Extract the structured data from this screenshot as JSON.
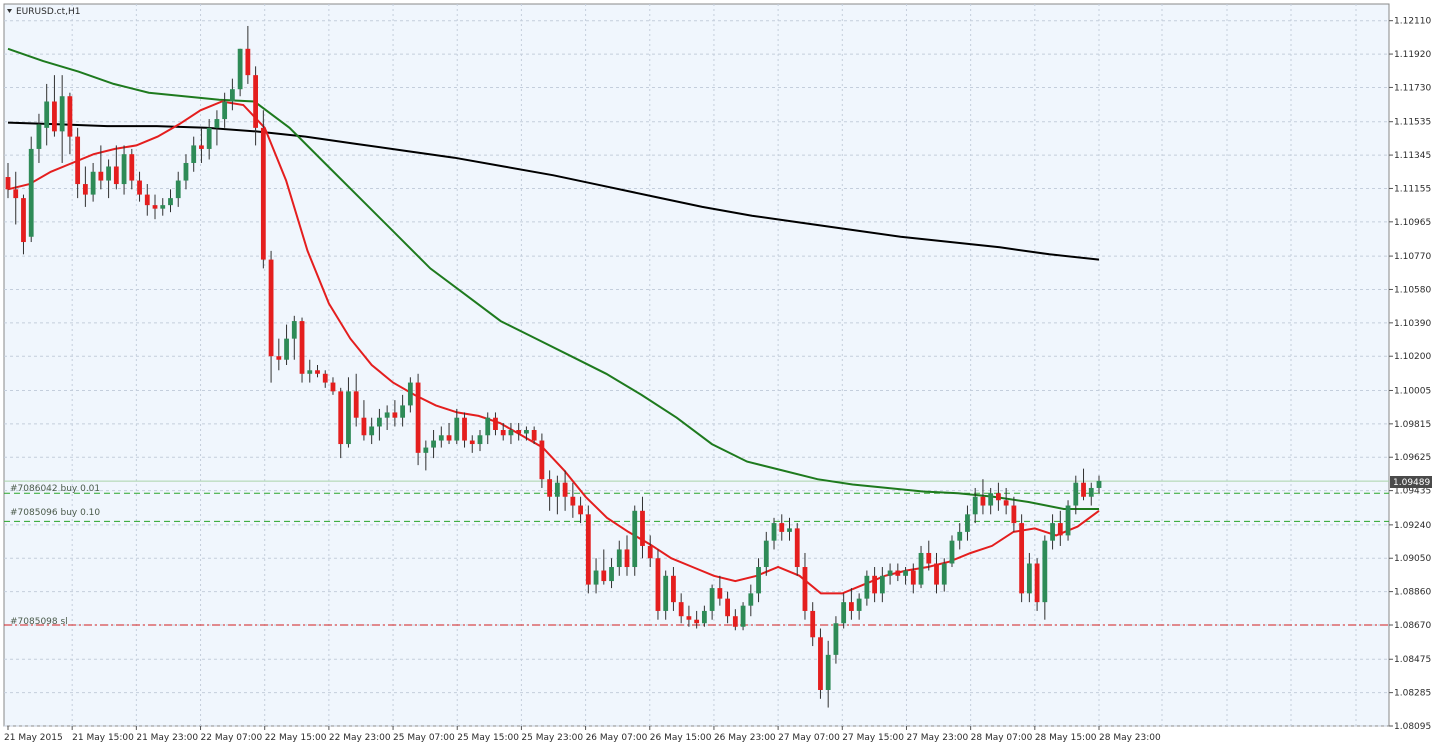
{
  "window": {
    "symbol_title": "EURUSD.ct,H1"
  },
  "colors": {
    "background": "#f0f6fd",
    "grid": "#c4cedc",
    "bull_candle": "#2e8b57",
    "bear_candle": "#e41e1e",
    "wick": "#303030",
    "ma_fast": "#e41e1e",
    "ma_mid": "#1e7a1e",
    "ma_slow": "#000000",
    "order_line_buy": "#2aa52a",
    "order_line_sl": "#d21e1e",
    "bid_line": "#a9d3a9",
    "current_price_tag": "#4a4a4a"
  },
  "price_axis": {
    "labels": [
      "1.12110",
      "1.11920",
      "1.11730",
      "1.11535",
      "1.11345",
      "1.11155",
      "1.10965",
      "1.10770",
      "1.10580",
      "1.10390",
      "1.10200",
      "1.10005",
      "1.09815",
      "1.09625",
      "1.09435",
      "1.09240",
      "1.09050",
      "1.08860",
      "1.08670",
      "1.08475",
      "1.08285",
      "1.08095"
    ],
    "current_price": "1.09489"
  },
  "time_axis": {
    "labels": [
      "21 May 2015",
      "21 May 15:00",
      "21 May 23:00",
      "22 May 07:00",
      "22 May 15:00",
      "22 May 23:00",
      "25 May 07:00",
      "25 May 15:00",
      "25 May 23:00",
      "26 May 07:00",
      "26 May 15:00",
      "26 May 23:00",
      "27 May 07:00",
      "27 May 15:00",
      "27 May 23:00",
      "28 May 07:00",
      "28 May 15:00",
      "28 May 23:00"
    ]
  },
  "orders": [
    {
      "label": "#7086042 buy 0.01",
      "price": 1.0942,
      "type": "buy"
    },
    {
      "label": "#7085096 buy 0.10",
      "price": 1.0926,
      "type": "buy"
    },
    {
      "label": "#7085098 sl",
      "price": 1.0867,
      "type": "sl"
    }
  ],
  "chart_data": {
    "type": "candlestick",
    "title": "EURUSD.ct,H1",
    "timeframe": "H1",
    "ylim": [
      1.08095,
      1.12205
    ],
    "candles": [
      [
        1.1122,
        1.113,
        1.111,
        1.1115
      ],
      [
        1.1115,
        1.1125,
        1.1095,
        1.111
      ],
      [
        1.111,
        1.1112,
        1.1078,
        1.1085
      ],
      [
        1.1088,
        1.1145,
        1.1085,
        1.1138
      ],
      [
        1.1138,
        1.1158,
        1.113,
        1.1152
      ],
      [
        1.115,
        1.1175,
        1.114,
        1.1165
      ],
      [
        1.1165,
        1.118,
        1.1145,
        1.1148
      ],
      [
        1.1148,
        1.118,
        1.113,
        1.1168
      ],
      [
        1.1168,
        1.117,
        1.1135,
        1.1145
      ],
      [
        1.1145,
        1.115,
        1.111,
        1.1118
      ],
      [
        1.1118,
        1.1128,
        1.1105,
        1.1112
      ],
      [
        1.1112,
        1.113,
        1.1108,
        1.1125
      ],
      [
        1.1125,
        1.114,
        1.1115,
        1.112
      ],
      [
        1.112,
        1.1132,
        1.111,
        1.1128
      ],
      [
        1.1128,
        1.114,
        1.1115,
        1.1118
      ],
      [
        1.1118,
        1.114,
        1.1112,
        1.1135
      ],
      [
        1.1135,
        1.1138,
        1.1115,
        1.112
      ],
      [
        1.112,
        1.1125,
        1.1108,
        1.1112
      ],
      [
        1.1112,
        1.1118,
        1.11,
        1.1106
      ],
      [
        1.1106,
        1.1112,
        1.1098,
        1.1104
      ],
      [
        1.1104,
        1.111,
        1.11,
        1.1106
      ],
      [
        1.1106,
        1.1115,
        1.1102,
        1.111
      ],
      [
        1.111,
        1.1125,
        1.1105,
        1.112
      ],
      [
        1.112,
        1.1135,
        1.1115,
        1.113
      ],
      [
        1.113,
        1.1145,
        1.1125,
        1.114
      ],
      [
        1.114,
        1.115,
        1.113,
        1.1138
      ],
      [
        1.1138,
        1.1155,
        1.1132,
        1.115
      ],
      [
        1.115,
        1.116,
        1.114,
        1.1155
      ],
      [
        1.1155,
        1.117,
        1.115,
        1.1165
      ],
      [
        1.1165,
        1.1178,
        1.116,
        1.1172
      ],
      [
        1.1172,
        1.1195,
        1.1168,
        1.1195
      ],
      [
        1.1195,
        1.1208,
        1.1175,
        1.118
      ],
      [
        1.118,
        1.1185,
        1.114,
        1.115
      ],
      [
        1.115,
        1.116,
        1.107,
        1.1075
      ],
      [
        1.1075,
        1.108,
        1.1005,
        1.102
      ],
      [
        1.102,
        1.103,
        1.1012,
        1.1018
      ],
      [
        1.1018,
        1.1038,
        1.1015,
        1.103
      ],
      [
        1.103,
        1.1043,
        1.1018,
        1.104
      ],
      [
        1.104,
        1.1042,
        1.1005,
        1.101
      ],
      [
        1.101,
        1.1018,
        1.1005,
        1.1012
      ],
      [
        1.1012,
        1.1015,
        1.1008,
        1.101
      ],
      [
        1.101,
        1.1012,
        1.1002,
        1.1005
      ],
      [
        1.1005,
        1.1008,
        1.0998,
        1.1
      ],
      [
        1.1,
        1.1002,
        1.0962,
        1.097
      ],
      [
        1.097,
        1.1008,
        1.0968,
        1.1
      ],
      [
        1.1,
        1.101,
        1.098,
        1.0985
      ],
      [
        1.0985,
        1.0995,
        1.0972,
        1.0975
      ],
      [
        1.0975,
        1.0985,
        1.097,
        1.098
      ],
      [
        1.098,
        1.099,
        1.0972,
        1.0985
      ],
      [
        1.0985,
        1.0992,
        1.0978,
        1.0988
      ],
      [
        1.0988,
        1.0995,
        1.098,
        1.0985
      ],
      [
        1.0985,
        1.0998,
        1.098,
        1.0992
      ],
      [
        1.0992,
        1.1008,
        1.0988,
        1.1005
      ],
      [
        1.1005,
        1.101,
        1.0958,
        1.0965
      ],
      [
        1.0965,
        1.0972,
        1.0955,
        1.0968
      ],
      [
        1.0968,
        1.0978,
        1.0962,
        1.0972
      ],
      [
        1.0972,
        1.098,
        1.0968,
        1.0975
      ],
      [
        1.0975,
        1.0982,
        1.097,
        1.0972
      ],
      [
        1.0972,
        1.099,
        1.097,
        1.0985
      ],
      [
        1.0985,
        1.0988,
        1.0968,
        1.0972
      ],
      [
        1.0972,
        1.0975,
        1.0965,
        1.097
      ],
      [
        1.097,
        1.0978,
        1.0966,
        1.0975
      ],
      [
        1.0975,
        1.0988,
        1.097,
        1.0985
      ],
      [
        1.0985,
        1.0988,
        1.0975,
        1.0978
      ],
      [
        1.0978,
        1.0982,
        1.0972,
        1.0975
      ],
      [
        1.0975,
        1.0982,
        1.097,
        1.0978
      ],
      [
        1.0978,
        1.0982,
        1.0972,
        1.0976
      ],
      [
        1.0976,
        1.098,
        1.0972,
        1.0978
      ],
      [
        1.0978,
        1.098,
        1.097,
        1.0972
      ],
      [
        1.0972,
        1.0976,
        1.0945,
        1.095
      ],
      [
        1.095,
        1.0955,
        1.0932,
        1.094
      ],
      [
        1.094,
        1.0952,
        1.093,
        1.0948
      ],
      [
        1.0948,
        1.0955,
        1.0932,
        1.094
      ],
      [
        1.094,
        1.0948,
        1.0928,
        1.0935
      ],
      [
        1.0935,
        1.094,
        1.0925,
        1.093
      ],
      [
        1.093,
        1.0935,
        1.0885,
        1.089
      ],
      [
        1.089,
        1.0905,
        1.0885,
        1.0898
      ],
      [
        1.0898,
        1.091,
        1.089,
        1.0892
      ],
      [
        1.0892,
        1.0905,
        1.0888,
        1.09
      ],
      [
        1.09,
        1.0915,
        1.0895,
        1.091
      ],
      [
        1.091,
        1.0918,
        1.0895,
        1.09
      ],
      [
        1.09,
        1.0935,
        1.0895,
        1.0932
      ],
      [
        1.0932,
        1.094,
        1.0905,
        1.0912
      ],
      [
        1.0912,
        1.0918,
        1.09,
        1.0905
      ],
      [
        1.0905,
        1.091,
        1.087,
        1.0875
      ],
      [
        1.0875,
        1.0898,
        1.087,
        1.0895
      ],
      [
        1.0895,
        1.09,
        1.0875,
        1.088
      ],
      [
        1.088,
        1.0885,
        1.0868,
        1.0872
      ],
      [
        1.0872,
        1.0878,
        1.0866,
        1.087
      ],
      [
        1.087,
        1.0875,
        1.0865,
        1.0868
      ],
      [
        1.0868,
        1.0878,
        1.0866,
        1.0875
      ],
      [
        1.0875,
        1.089,
        1.087,
        1.0888
      ],
      [
        1.0888,
        1.0895,
        1.0878,
        1.0882
      ],
      [
        1.0882,
        1.0886,
        1.0868,
        1.0872
      ],
      [
        1.0872,
        1.0876,
        1.0864,
        1.0866
      ],
      [
        1.0866,
        1.088,
        1.0864,
        1.0878
      ],
      [
        1.0878,
        1.089,
        1.0872,
        1.0885
      ],
      [
        1.0885,
        1.0905,
        1.088,
        1.09
      ],
      [
        1.09,
        1.092,
        1.0895,
        1.0915
      ],
      [
        1.0915,
        1.0928,
        1.091,
        1.0925
      ],
      [
        1.0925,
        1.093,
        1.0915,
        1.092
      ],
      [
        1.092,
        1.0928,
        1.0915,
        1.0922
      ],
      [
        1.0922,
        1.0925,
        1.0895,
        1.09
      ],
      [
        1.09,
        1.0908,
        1.087,
        1.0875
      ],
      [
        1.0875,
        1.088,
        1.0855,
        1.086
      ],
      [
        1.086,
        1.0865,
        1.0825,
        1.083
      ],
      [
        1.083,
        1.0858,
        1.082,
        1.085
      ],
      [
        1.085,
        1.0872,
        1.0845,
        1.0868
      ],
      [
        1.0868,
        1.0885,
        1.0865,
        1.088
      ],
      [
        1.088,
        1.0888,
        1.087,
        1.0875
      ],
      [
        1.0875,
        1.0885,
        1.087,
        1.0882
      ],
      [
        1.0882,
        1.0898,
        1.0878,
        1.0895
      ],
      [
        1.0895,
        1.09,
        1.088,
        1.0885
      ],
      [
        1.0885,
        1.09,
        1.088,
        1.0895
      ],
      [
        1.0895,
        1.0902,
        1.089,
        1.0898
      ],
      [
        1.0898,
        1.0902,
        1.0892,
        1.0895
      ],
      [
        1.0895,
        1.09,
        1.089,
        1.0898
      ],
      [
        1.0898,
        1.0902,
        1.0885,
        1.089
      ],
      [
        1.089,
        1.0912,
        1.0888,
        1.0908
      ],
      [
        1.0908,
        1.0915,
        1.0898,
        1.0902
      ],
      [
        1.0902,
        1.0908,
        1.0885,
        1.089
      ],
      [
        1.089,
        1.0905,
        1.0886,
        1.0902
      ],
      [
        1.0902,
        1.0918,
        1.09,
        1.0915
      ],
      [
        1.0915,
        1.0925,
        1.091,
        1.092
      ],
      [
        1.092,
        1.0935,
        1.0915,
        1.093
      ],
      [
        1.093,
        1.0945,
        1.0925,
        1.094
      ],
      [
        1.094,
        1.095,
        1.093,
        1.0935
      ],
      [
        1.0935,
        1.0945,
        1.093,
        1.0942
      ],
      [
        1.0942,
        1.0948,
        1.0932,
        1.0938
      ],
      [
        1.0938,
        1.0945,
        1.093,
        1.0935
      ],
      [
        1.0935,
        1.094,
        1.092,
        1.0925
      ],
      [
        1.0925,
        1.093,
        1.088,
        1.0885
      ],
      [
        1.0885,
        1.0908,
        1.088,
        1.0902
      ],
      [
        1.0902,
        1.0905,
        1.0875,
        1.088
      ],
      [
        1.088,
        1.0918,
        1.087,
        1.0915
      ],
      [
        1.0915,
        1.093,
        1.091,
        1.0925
      ],
      [
        1.0925,
        1.0932,
        1.0912,
        1.0918
      ],
      [
        1.0918,
        1.0938,
        1.0915,
        1.0935
      ],
      [
        1.0935,
        1.0952,
        1.093,
        1.0948
      ],
      [
        1.0948,
        1.0956,
        1.0938,
        1.094
      ],
      [
        1.094,
        1.0948,
        1.0935,
        1.0945
      ],
      [
        1.0945,
        1.0952,
        1.0942,
        1.0949
      ]
    ],
    "ma_fast_values": [
      1.1115,
      1.1118,
      1.1125,
      1.113,
      1.1135,
      1.1138,
      1.114,
      1.1145,
      1.1152,
      1.116,
      1.1165,
      1.1163,
      1.115,
      1.112,
      1.108,
      1.105,
      1.103,
      1.1015,
      1.1005,
      1.0998,
      1.0992,
      1.0988,
      1.0986,
      1.0982,
      1.0975,
      1.0968,
      1.0955,
      1.094,
      1.0928,
      1.092,
      1.0913,
      1.0905,
      1.09,
      1.0895,
      1.0892,
      1.0895,
      1.09,
      1.0895,
      1.0885,
      1.0885,
      1.089,
      1.0895,
      1.0898,
      1.09,
      1.0903,
      1.0908,
      1.0912,
      1.092,
      1.0922,
      1.0918,
      1.0923,
      1.0932
    ],
    "ma_mid_values": [
      1.1195,
      1.1188,
      1.1182,
      1.1175,
      1.117,
      1.1168,
      1.1166,
      1.1165,
      1.115,
      1.113,
      1.111,
      1.109,
      1.107,
      1.1055,
      1.104,
      1.103,
      1.102,
      1.101,
      1.0998,
      1.0985,
      1.097,
      1.096,
      1.0955,
      1.095,
      1.0947,
      1.0945,
      1.0943,
      1.0942,
      1.094,
      1.0937,
      1.0933,
      1.0933
    ],
    "ma_slow_values": [
      1.1153,
      1.1152,
      1.1151,
      1.1151,
      1.115,
      1.1148,
      1.1145,
      1.1141,
      1.1137,
      1.1133,
      1.1128,
      1.1123,
      1.1117,
      1.1111,
      1.1105,
      1.11,
      1.1096,
      1.1092,
      1.1088,
      1.1085,
      1.1082,
      1.1078,
      1.1075
    ]
  }
}
